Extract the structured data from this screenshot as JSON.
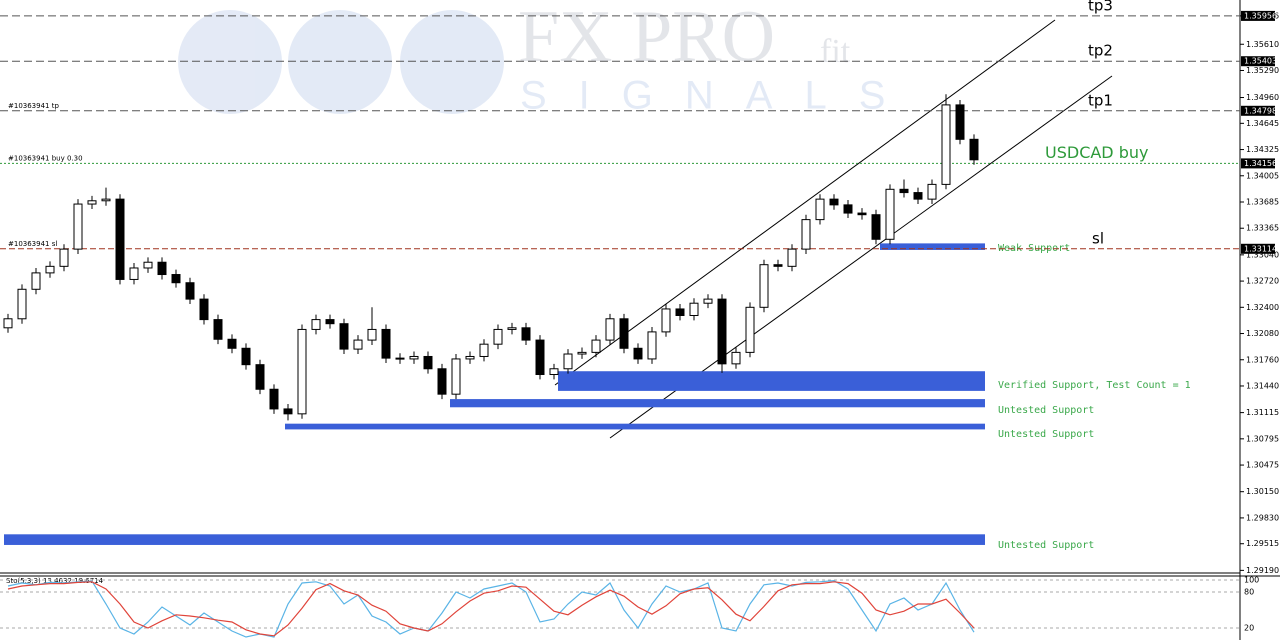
{
  "chart_data": {
    "type": "candlestick",
    "symbol_note": "#10363941",
    "watermark": {
      "brand": "FX PRO",
      "sub": "fit",
      "tagline": "SIGNALS"
    },
    "ylim": [
      1.2917,
      1.3615
    ],
    "yticks": [
      1.35956,
      {
        "value": 1.3561,
        "label": "1.35610"
      },
      {
        "value": 1.3529,
        "label": "1.35290"
      },
      {
        "value": 1.3496,
        "label": "1.34960"
      },
      1.34645,
      1.34325,
      1.34005,
      1.33685,
      1.33365,
      {
        "value": 1.3304,
        "label": "1.33040"
      },
      {
        "value": 1.3272,
        "label": "1.32720"
      },
      {
        "value": 1.324,
        "label": "1.32400"
      },
      {
        "value": 1.3208,
        "label": "1.32080"
      },
      {
        "value": 1.3176,
        "label": "1.31760"
      },
      {
        "value": 1.3144,
        "label": "1.31440"
      },
      1.31115,
      1.30795,
      1.30475,
      {
        "value": 1.3015,
        "label": "1.30150"
      },
      {
        "value": 1.2983,
        "label": "1.29830"
      },
      1.29515,
      {
        "value": 1.2919,
        "label": "1.29190"
      }
    ],
    "levels": [
      {
        "name": "tp3",
        "price": 1.35956,
        "color": "#555"
      },
      {
        "name": "tp2",
        "price": 1.35403,
        "color": "#555"
      },
      {
        "name": "tp1",
        "price": 1.34798,
        "color": "#555",
        "order": "#10363941 tp"
      },
      {
        "name": "USDCAD buy",
        "price": 1.34156,
        "color": "#2e9a3a",
        "order": "#10363941 buy 0.30"
      },
      {
        "name": "sl",
        "price": 1.33114,
        "color": "#a0321e",
        "order": "#10363941 sl"
      }
    ],
    "zones": [
      {
        "label": "Weak Support",
        "low": 1.331,
        "high": 1.3318
      },
      {
        "label": "Verified Support, Test Count = 1",
        "low": 1.3138,
        "high": 1.3162
      },
      {
        "label": "Untested Support",
        "low": 1.3118,
        "high": 1.3128
      },
      {
        "label": "Untested Support",
        "low": 1.3091,
        "high": 1.3098
      },
      {
        "label": "Untested Support",
        "low": 1.295,
        "high": 1.2963
      }
    ],
    "open": [
      1.3215,
      1.3226,
      1.3262,
      1.3282,
      1.329,
      1.3311,
      1.3366,
      1.337,
      1.3372,
      1.3274,
      1.3288,
      1.3295,
      1.328,
      1.327,
      1.325,
      1.3225,
      1.3201,
      1.319,
      1.317,
      1.314,
      1.3116,
      1.311,
      1.3213,
      1.3225,
      1.322,
      1.3189,
      1.32,
      1.3213,
      1.3178,
      1.3177,
      1.318,
      1.3165,
      1.3134,
      1.3177,
      1.318,
      1.3195,
      1.3213,
      1.3215,
      1.32,
      1.3158,
      1.3165,
      1.3183,
      1.3185,
      1.32,
      1.3226,
      1.319,
      1.3177,
      1.321,
      1.3238,
      1.323,
      1.3245,
      1.325,
      1.3171,
      1.3185,
      1.324,
      1.3292,
      1.329,
      1.3311,
      1.3347,
      1.3372,
      1.3365,
      1.3355,
      1.3353,
      1.3323,
      1.3384,
      1.338,
      1.3372,
      1.339,
      1.3487,
      1.3445
    ],
    "high": [
      1.3232,
      1.3268,
      1.3288,
      1.3296,
      1.3317,
      1.3372,
      1.3376,
      1.3386,
      1.3378,
      1.3294,
      1.3301,
      1.3301,
      1.3286,
      1.3276,
      1.3256,
      1.3231,
      1.3207,
      1.3196,
      1.3176,
      1.3146,
      1.3122,
      1.3219,
      1.3231,
      1.3231,
      1.3226,
      1.3206,
      1.324,
      1.3219,
      1.3184,
      1.3186,
      1.3186,
      1.3171,
      1.3183,
      1.3186,
      1.3201,
      1.3219,
      1.3221,
      1.3221,
      1.3206,
      1.3171,
      1.3189,
      1.3191,
      1.3206,
      1.3232,
      1.3232,
      1.3196,
      1.3216,
      1.3244,
      1.3244,
      1.3251,
      1.3256,
      1.3256,
      1.3191,
      1.3246,
      1.3298,
      1.3298,
      1.3317,
      1.3353,
      1.3378,
      1.3378,
      1.3371,
      1.3361,
      1.3359,
      1.339,
      1.3396,
      1.3386,
      1.3396,
      1.35,
      1.3493,
      1.3451
    ],
    "low": [
      1.3209,
      1.322,
      1.3256,
      1.3276,
      1.3284,
      1.3305,
      1.336,
      1.3364,
      1.3268,
      1.3268,
      1.3282,
      1.3274,
      1.3264,
      1.3244,
      1.3219,
      1.3195,
      1.3184,
      1.3164,
      1.3134,
      1.311,
      1.3102,
      1.3104,
      1.3207,
      1.3214,
      1.3183,
      1.3183,
      1.3194,
      1.3172,
      1.3171,
      1.3171,
      1.3159,
      1.3128,
      1.3128,
      1.3171,
      1.3174,
      1.3189,
      1.3207,
      1.3194,
      1.3152,
      1.3152,
      1.3159,
      1.3177,
      1.3179,
      1.3194,
      1.3184,
      1.3171,
      1.3171,
      1.3204,
      1.3224,
      1.3224,
      1.3239,
      1.316,
      1.3165,
      1.3179,
      1.3234,
      1.3284,
      1.3284,
      1.3305,
      1.3341,
      1.3359,
      1.3349,
      1.3347,
      1.3317,
      1.3317,
      1.3374,
      1.3366,
      1.3366,
      1.3384,
      1.3439,
      1.3414
    ],
    "close": [
      1.3226,
      1.3262,
      1.3282,
      1.329,
      1.3311,
      1.3366,
      1.337,
      1.3372,
      1.3274,
      1.3288,
      1.3295,
      1.328,
      1.327,
      1.325,
      1.3225,
      1.3201,
      1.319,
      1.317,
      1.314,
      1.3116,
      1.311,
      1.3213,
      1.3225,
      1.322,
      1.3189,
      1.32,
      1.3213,
      1.3178,
      1.3177,
      1.318,
      1.3165,
      1.3134,
      1.3177,
      1.318,
      1.3195,
      1.3213,
      1.3215,
      1.32,
      1.3158,
      1.3165,
      1.3183,
      1.3185,
      1.32,
      1.3226,
      1.319,
      1.3177,
      1.321,
      1.3238,
      1.323,
      1.3245,
      1.325,
      1.3171,
      1.3185,
      1.324,
      1.3292,
      1.329,
      1.3311,
      1.3347,
      1.3372,
      1.3365,
      1.3355,
      1.3353,
      1.3323,
      1.3384,
      1.338,
      1.3372,
      1.339,
      1.3487,
      1.3445,
      1.342
    ],
    "oscillator": {
      "label": "Sto(5,3,3) 13.4632 19.6714",
      "ylim": [
        0,
        100
      ],
      "yticks": [
        100,
        80,
        20
      ],
      "series": [
        {
          "name": "main",
          "color": "#5ab4e6",
          "values": [
            90,
            95,
            92,
            96,
            95,
            97,
            98,
            60,
            20,
            10,
            30,
            55,
            40,
            25,
            45,
            30,
            15,
            5,
            10,
            5,
            60,
            95,
            97,
            90,
            60,
            75,
            40,
            30,
            10,
            20,
            15,
            45,
            80,
            70,
            85,
            90,
            95,
            80,
            30,
            35,
            60,
            80,
            75,
            95,
            50,
            20,
            60,
            90,
            80,
            85,
            95,
            20,
            15,
            60,
            92,
            95,
            90,
            96,
            97,
            99,
            85,
            50,
            15,
            60,
            70,
            50,
            60,
            95,
            50,
            13
          ]
        },
        {
          "name": "signal",
          "color": "#e0443a",
          "values": [
            85,
            90,
            92,
            94,
            94,
            96,
            97,
            85,
            60,
            30,
            20,
            32,
            42,
            40,
            37,
            33,
            30,
            17,
            10,
            7,
            25,
            53,
            84,
            94,
            82,
            75,
            58,
            48,
            27,
            20,
            15,
            27,
            47,
            65,
            78,
            82,
            90,
            88,
            68,
            48,
            42,
            58,
            72,
            83,
            73,
            55,
            43,
            57,
            77,
            85,
            87,
            67,
            43,
            32,
            56,
            82,
            92,
            94,
            94,
            97,
            94,
            78,
            50,
            42,
            48,
            60,
            60,
            68,
            45,
            20
          ]
        }
      ]
    }
  }
}
